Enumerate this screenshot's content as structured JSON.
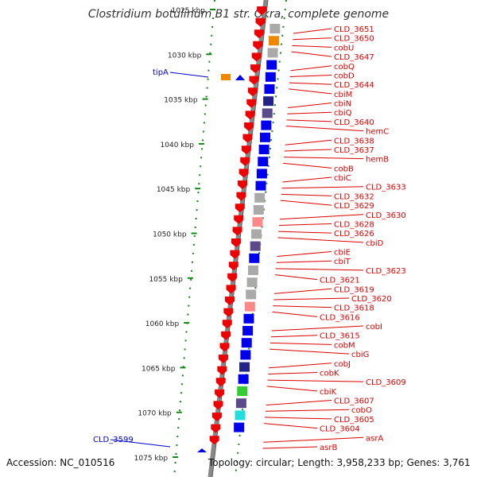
{
  "title": "Clostridium botulinum B1 str. Okra, complete genome",
  "footer": {
    "accession": "Accession: NC_010516",
    "topology": "Topology: circular; Length: 3,958,233 bp; Genes: 3,761"
  },
  "colors": {
    "gene_label": "#dd0000",
    "highlight_label": "#0000cc",
    "cds": "#ee0000",
    "axis_tick": "#118811",
    "blue": "#0000ee",
    "dark_blue": "#222288",
    "purple": "#5a4a8a",
    "gray": "#aaaaaa",
    "green": "#33cc33",
    "orange": "#ee8800",
    "cyan": "#22dddd",
    "pink": "#ff8888"
  },
  "scale_labels": [
    "1025 kbp",
    "1030 kbp",
    "1035 kbp",
    "1040 kbp",
    "1045 kbp",
    "1050 kbp",
    "1055 kbp",
    "1060 kbp",
    "1065 kbp",
    "1070 kbp",
    "1075 kbp"
  ],
  "highlight_genes": [
    "tipA",
    "CLD_3599"
  ],
  "gene_labels": [
    "CLD_3651",
    "CLD_3650",
    "cobU",
    "CLD_3647",
    "cobQ",
    "cobD",
    "CLD_3644",
    "cbiM",
    "cbiN",
    "cbiQ",
    "CLD_3640",
    "hemC",
    "CLD_3638",
    "CLD_3637",
    "hemB",
    "cobB",
    "cbiC",
    "CLD_3633",
    "CLD_3632",
    "CLD_3629",
    "CLD_3630",
    "CLD_3628",
    "CLD_3626",
    "cbiD",
    "cbiE",
    "cbiT",
    "CLD_3623",
    "CLD_3621",
    "CLD_3619",
    "CLD_3620",
    "CLD_3618",
    "CLD_3616",
    "cobI",
    "CLD_3615",
    "cobM",
    "cbiG",
    "cobJ",
    "cobK",
    "CLD_3609",
    "cbiK",
    "CLD_3607",
    "cobO",
    "CLD_3605",
    "CLD_3604",
    "asrA",
    "asrB"
  ],
  "feature_colors": [
    "gray",
    "orange",
    "gray",
    "blue",
    "blue",
    "blue",
    "dark_blue",
    "purple",
    "blue",
    "blue",
    "blue",
    "blue",
    "blue",
    "blue",
    "gray",
    "gray",
    "pink",
    "gray",
    "purple",
    "blue",
    "gray",
    "gray",
    "gray",
    "pink",
    "blue",
    "blue",
    "blue",
    "blue",
    "dark_blue",
    "blue",
    "green",
    "purple",
    "cyan",
    "blue"
  ]
}
